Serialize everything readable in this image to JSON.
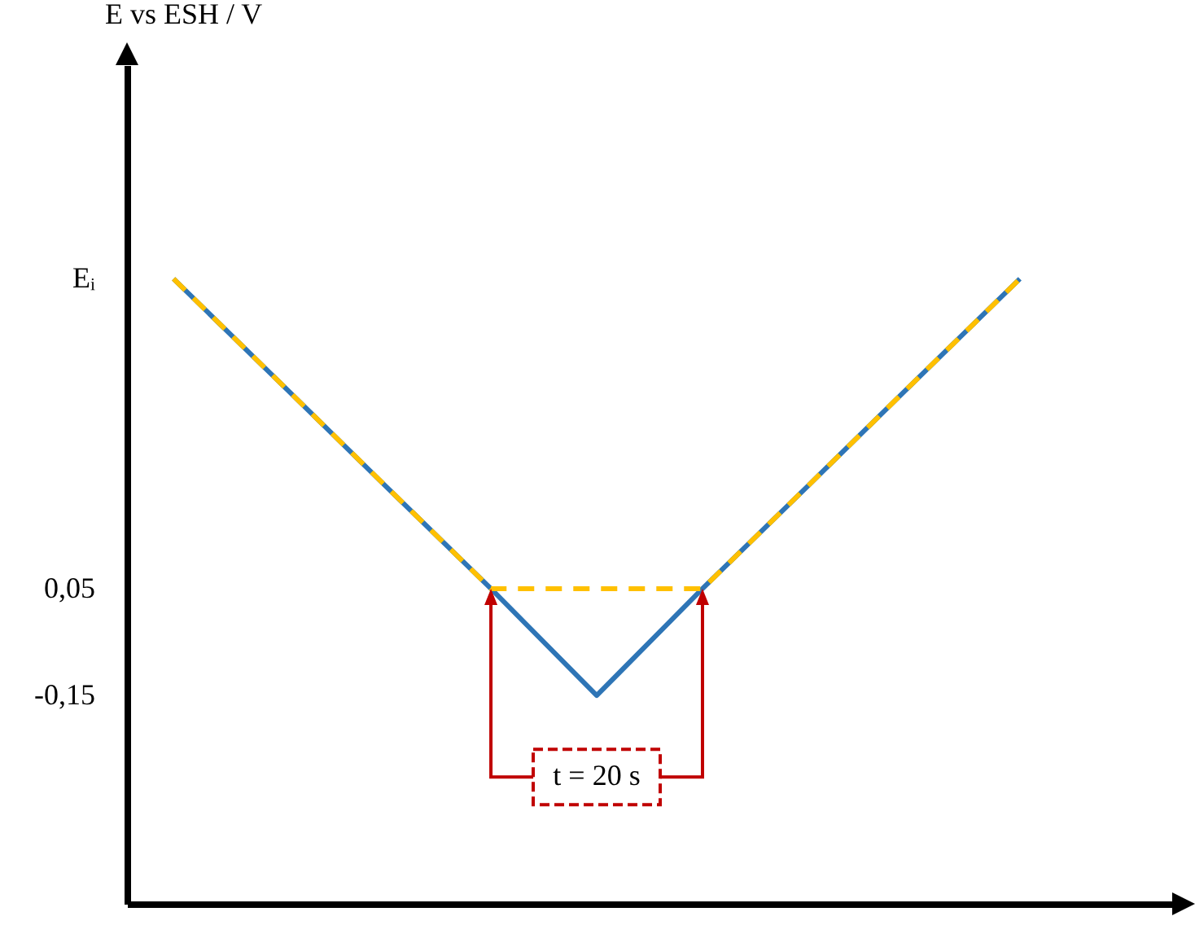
{
  "chart_data": {
    "type": "line",
    "ylabel": "E vs ESH / V",
    "ylim": [
      -0.54,
      1.03
    ],
    "categories": [
      null,
      null,
      null,
      null,
      null,
      null,
      null,
      null,
      null,
      null
    ],
    "yticks": [
      {
        "value": 0.63,
        "label": "Eᵢ"
      },
      {
        "value": 0.05,
        "label": "0,05"
      },
      {
        "value": -0.15,
        "label": "-0,15"
      }
    ],
    "tick_labels": "y",
    "grid": false,
    "series": [
      {
        "color": "#2e75b6",
        "line_style": "solid",
        "values": [
          0.63,
          0.437,
          0.243,
          0.05,
          -0.15,
          0.05,
          0.243,
          0.437,
          0.63,
          null
        ]
      },
      {
        "color": "#ffc000",
        "line_style": "dashed",
        "values": [
          0.63,
          0.437,
          0.243,
          0.05,
          0.05,
          0.05,
          0.243,
          0.437,
          0.63,
          null
        ]
      }
    ],
    "annotations": [
      "t = 20 s"
    ]
  }
}
